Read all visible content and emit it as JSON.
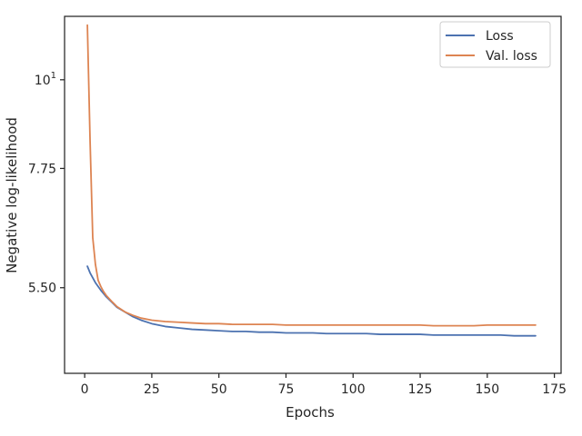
{
  "chart_data": {
    "type": "line",
    "title": "",
    "xlabel": "Epochs",
    "ylabel": "Negative log-likelihood",
    "yscale": "log",
    "xlim": [
      -7.5,
      177.5
    ],
    "ylim": [
      4.3,
      12.0
    ],
    "x_ticks": [
      0,
      25,
      50,
      75,
      100,
      125,
      150,
      175
    ],
    "x_tick_labels": [
      "0",
      "25",
      "50",
      "75",
      "100",
      "125",
      "150",
      "175"
    ],
    "y_ticks": [
      5.5,
      7.75,
      10
    ],
    "y_tick_labels": [
      "5.50",
      "7.75",
      "10¹"
    ],
    "grid": false,
    "legend_position": "top-right",
    "series": [
      {
        "name": "Loss",
        "color": "#4c72b0",
        "x": [
          1,
          2,
          3,
          4,
          5,
          6,
          7,
          8,
          10,
          12,
          15,
          18,
          21,
          25,
          30,
          35,
          40,
          45,
          50,
          55,
          60,
          65,
          70,
          75,
          80,
          85,
          90,
          95,
          100,
          105,
          110,
          115,
          120,
          125,
          130,
          135,
          140,
          145,
          150,
          155,
          160,
          165,
          168
        ],
        "values": [
          5.85,
          5.74,
          5.66,
          5.58,
          5.52,
          5.46,
          5.41,
          5.36,
          5.28,
          5.2,
          5.13,
          5.06,
          5.01,
          4.96,
          4.92,
          4.9,
          4.88,
          4.87,
          4.86,
          4.85,
          4.85,
          4.84,
          4.84,
          4.83,
          4.83,
          4.83,
          4.82,
          4.82,
          4.82,
          4.82,
          4.81,
          4.81,
          4.81,
          4.81,
          4.8,
          4.8,
          4.8,
          4.8,
          4.8,
          4.8,
          4.79,
          4.79,
          4.79
        ]
      },
      {
        "name": "Val. loss",
        "color": "#dd8452",
        "x": [
          1,
          2,
          3,
          4,
          5,
          6,
          7,
          8,
          10,
          12,
          15,
          18,
          21,
          25,
          30,
          35,
          40,
          45,
          50,
          55,
          60,
          65,
          70,
          75,
          80,
          85,
          90,
          95,
          100,
          105,
          110,
          115,
          120,
          125,
          130,
          135,
          140,
          145,
          150,
          155,
          160,
          165,
          168
        ],
        "values": [
          11.7,
          8.4,
          6.35,
          5.88,
          5.62,
          5.52,
          5.44,
          5.38,
          5.29,
          5.21,
          5.13,
          5.08,
          5.04,
          5.01,
          4.99,
          4.98,
          4.97,
          4.96,
          4.96,
          4.95,
          4.95,
          4.95,
          4.95,
          4.94,
          4.94,
          4.94,
          4.94,
          4.94,
          4.94,
          4.94,
          4.94,
          4.94,
          4.94,
          4.94,
          4.93,
          4.93,
          4.93,
          4.93,
          4.94,
          4.94,
          4.94,
          4.94,
          4.94
        ]
      }
    ]
  }
}
